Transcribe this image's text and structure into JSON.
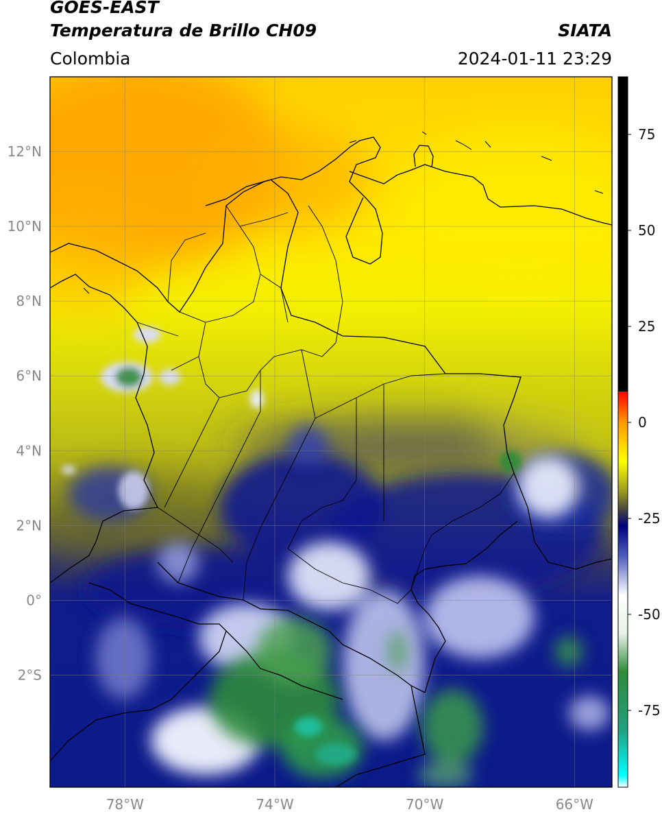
{
  "header": {
    "title_line1": "GOES-EAST",
    "title_line2": "Temperatura de Brillo CH09",
    "organization": "SIATA",
    "region": "Colombia",
    "timestamp": "2024-01-11 23:29"
  },
  "map": {
    "lat_ticks": [
      {
        "value": 12,
        "label": "12°N"
      },
      {
        "value": 10,
        "label": "10°N"
      },
      {
        "value": 8,
        "label": "8°N"
      },
      {
        "value": 6,
        "label": "6°N"
      },
      {
        "value": 4,
        "label": "4°N"
      },
      {
        "value": 2,
        "label": "2°N"
      },
      {
        "value": 0,
        "label": "0°"
      },
      {
        "value": -2,
        "label": "2°S"
      }
    ],
    "lon_ticks": [
      {
        "value": -78,
        "label": "78°W"
      },
      {
        "value": -74,
        "label": "74°W"
      },
      {
        "value": -70,
        "label": "70°W"
      },
      {
        "value": -66,
        "label": "66°W"
      }
    ],
    "extent": {
      "lon_min": -80,
      "lon_max": -65,
      "lat_min": -5,
      "lat_max": 14
    },
    "gridlines": true,
    "colors": {
      "warm_clear_north": "#ffa500",
      "clear_yellow": "#ffff00",
      "olive": "#bfbf10",
      "cloud_blue": "#0a1a8c",
      "cloud_white": "#ffffff",
      "cold_green": "#2e8b3a",
      "coldest_cyan": "#20c0a0"
    }
  },
  "colorbar": {
    "ticks": [
      {
        "value": 75,
        "label": "75"
      },
      {
        "value": 50,
        "label": "50"
      },
      {
        "value": 25,
        "label": "25"
      },
      {
        "value": 0,
        "label": "0"
      },
      {
        "value": -25,
        "label": "-25"
      },
      {
        "value": -50,
        "label": "-50"
      },
      {
        "value": -75,
        "label": "-75"
      }
    ],
    "range": [
      -95,
      90
    ],
    "stops": [
      {
        "value": -95,
        "color": "#ffffff"
      },
      {
        "value": -92,
        "color": "#00ffff"
      },
      {
        "value": -80,
        "color": "#20a080"
      },
      {
        "value": -65,
        "color": "#2e8b3a"
      },
      {
        "value": -55,
        "color": "#e8f0e8"
      },
      {
        "value": -45,
        "color": "#ffffff"
      },
      {
        "value": -35,
        "color": "#5060c0"
      },
      {
        "value": -27,
        "color": "#000080"
      },
      {
        "value": -23,
        "color": "#404040"
      },
      {
        "value": -18,
        "color": "#9a9a20"
      },
      {
        "value": -10,
        "color": "#ffff00"
      },
      {
        "value": 0,
        "color": "#ff9900"
      },
      {
        "value": 8,
        "color": "#ff0000"
      },
      {
        "value": 8.01,
        "color": "#000000"
      },
      {
        "value": 90,
        "color": "#000000"
      }
    ]
  }
}
